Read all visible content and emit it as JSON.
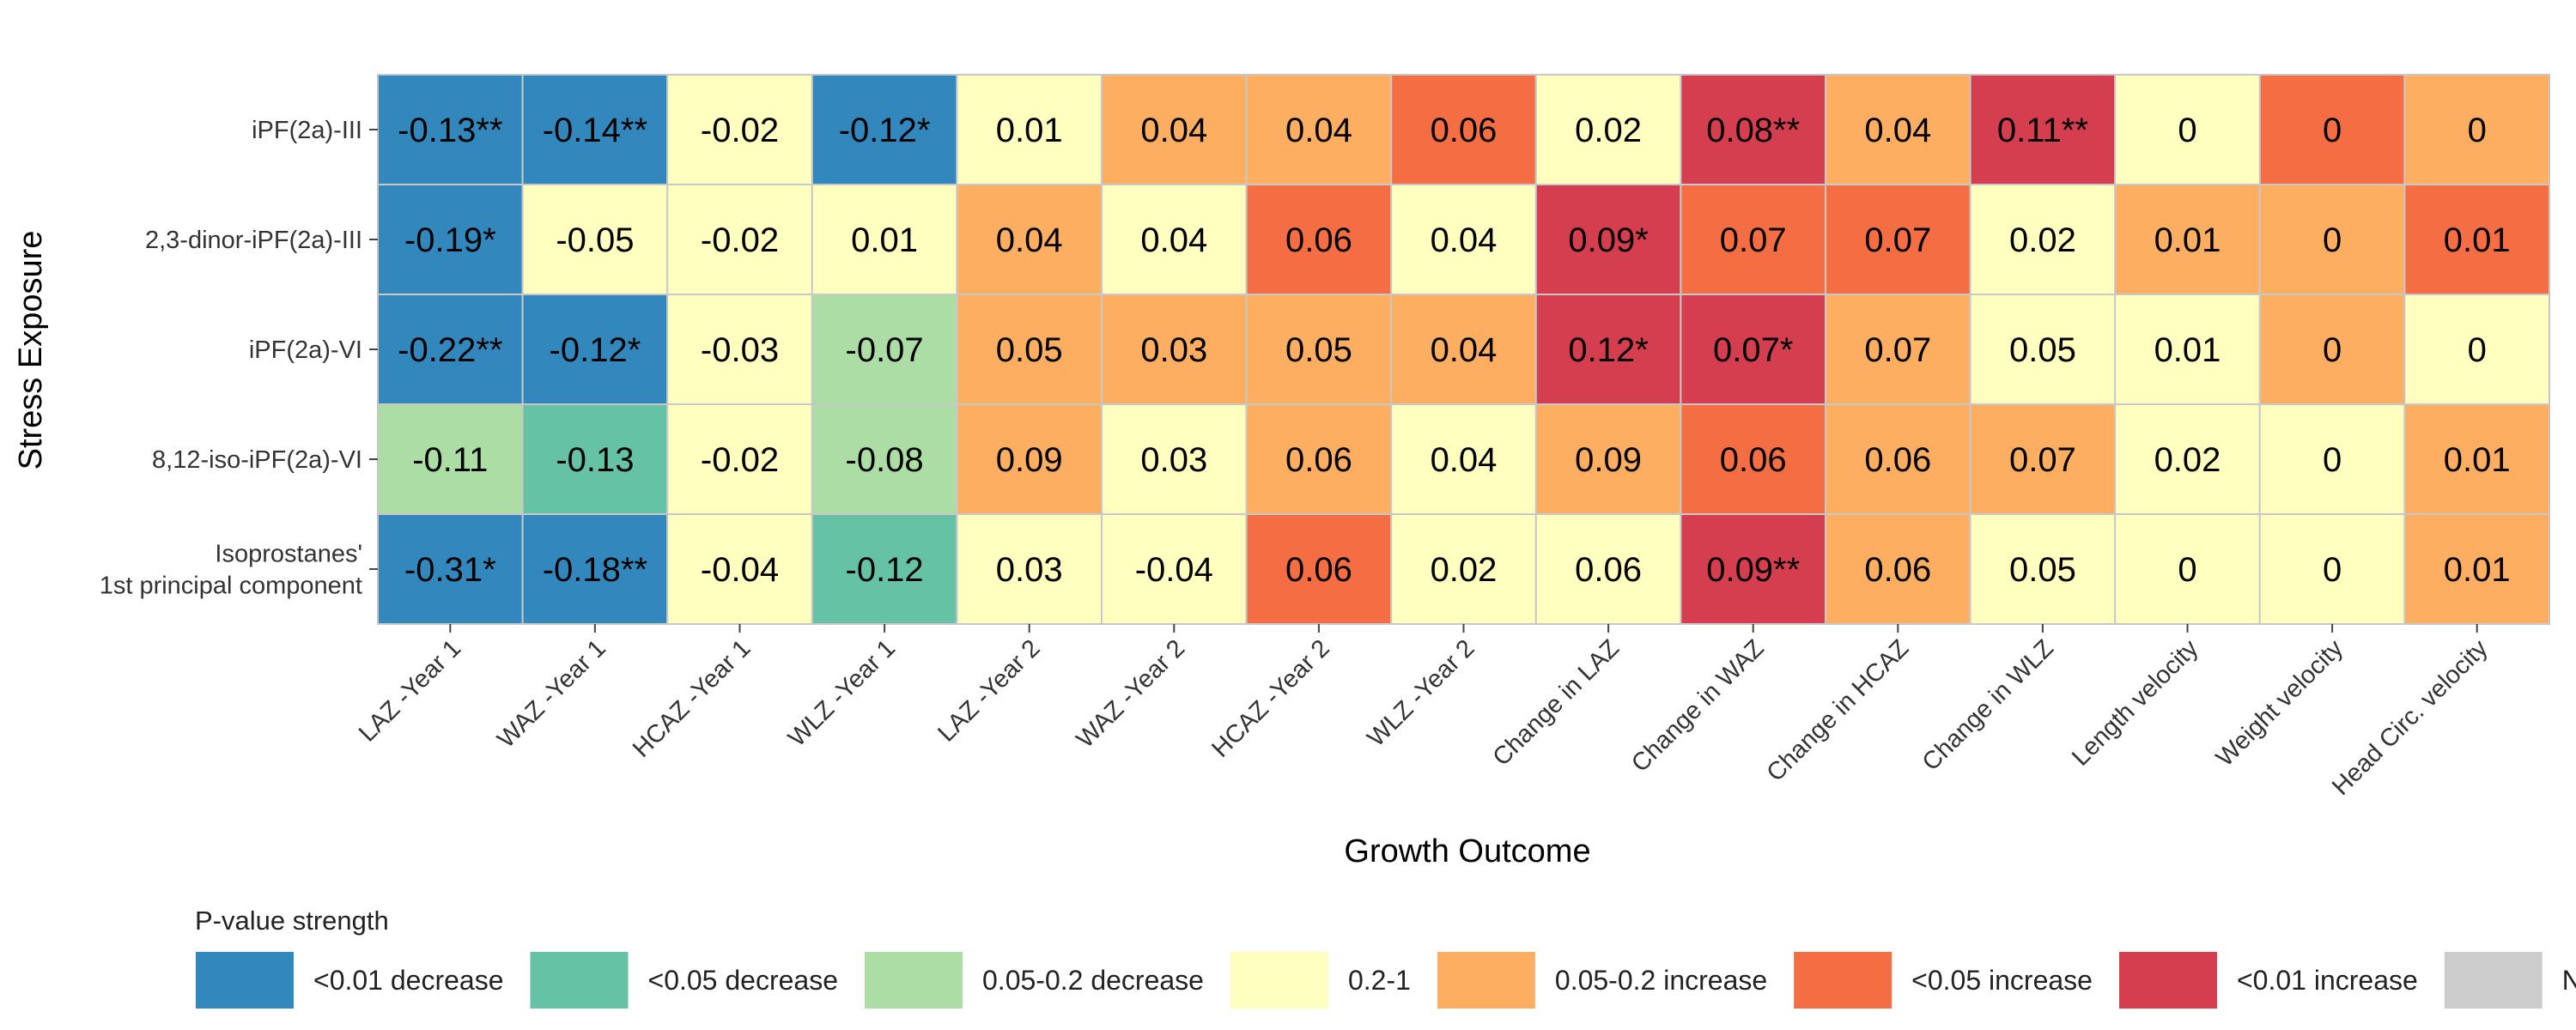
{
  "chart_data": {
    "type": "heatmap",
    "title": "",
    "xlabel": "Growth Outcome",
    "ylabel": "Stress Exposure",
    "x_categories": [
      "LAZ -Year 1",
      "WAZ -Year 1",
      "HCAZ -Year 1",
      "WLZ -Year 1",
      "LAZ -Year 2",
      "WAZ -Year 2",
      "HCAZ -Year 2",
      "WLZ -Year 2",
      "Change in LAZ",
      "Change in WAZ",
      "Change in HCAZ",
      "Change in WLZ",
      "Length velocity",
      "Weight velocity",
      "Head Circ. velocity"
    ],
    "y_categories": [
      [
        "iPF(2a)-III"
      ],
      [
        "2,3-dinor-iPF(2a)-III"
      ],
      [
        "iPF(2a)-VI"
      ],
      [
        "8,12-iso-iPF(2a)-VI"
      ],
      [
        "Isoprostanes'",
        "1st principal component"
      ]
    ],
    "cells": [
      [
        {
          "label": "-0.13**",
          "category": 0
        },
        {
          "label": "-0.14**",
          "category": 0
        },
        {
          "label": "-0.02",
          "category": 3
        },
        {
          "label": "-0.12*",
          "category": 0
        },
        {
          "label": "0.01",
          "category": 3
        },
        {
          "label": "0.04",
          "category": 4
        },
        {
          "label": "0.04",
          "category": 4
        },
        {
          "label": "0.06",
          "category": 5
        },
        {
          "label": "0.02",
          "category": 3
        },
        {
          "label": "0.08**",
          "category": 6
        },
        {
          "label": "0.04",
          "category": 4
        },
        {
          "label": "0.11**",
          "category": 6
        },
        {
          "label": "0",
          "category": 3
        },
        {
          "label": "0",
          "category": 5
        },
        {
          "label": "0",
          "category": 4
        }
      ],
      [
        {
          "label": "-0.19*",
          "category": 0
        },
        {
          "label": "-0.05",
          "category": 3
        },
        {
          "label": "-0.02",
          "category": 3
        },
        {
          "label": "0.01",
          "category": 3
        },
        {
          "label": "0.04",
          "category": 4
        },
        {
          "label": "0.04",
          "category": 3
        },
        {
          "label": "0.06",
          "category": 5
        },
        {
          "label": "0.04",
          "category": 3
        },
        {
          "label": "0.09*",
          "category": 6
        },
        {
          "label": "0.07",
          "category": 5
        },
        {
          "label": "0.07",
          "category": 5
        },
        {
          "label": "0.02",
          "category": 3
        },
        {
          "label": "0.01",
          "category": 4
        },
        {
          "label": "0",
          "category": 4
        },
        {
          "label": "0.01",
          "category": 5
        }
      ],
      [
        {
          "label": "-0.22**",
          "category": 0
        },
        {
          "label": "-0.12*",
          "category": 0
        },
        {
          "label": "-0.03",
          "category": 3
        },
        {
          "label": "-0.07",
          "category": 2
        },
        {
          "label": "0.05",
          "category": 4
        },
        {
          "label": "0.03",
          "category": 4
        },
        {
          "label": "0.05",
          "category": 4
        },
        {
          "label": "0.04",
          "category": 4
        },
        {
          "label": "0.12*",
          "category": 6
        },
        {
          "label": "0.07*",
          "category": 6
        },
        {
          "label": "0.07",
          "category": 4
        },
        {
          "label": "0.05",
          "category": 3
        },
        {
          "label": "0.01",
          "category": 3
        },
        {
          "label": "0",
          "category": 4
        },
        {
          "label": "0",
          "category": 3
        }
      ],
      [
        {
          "label": "-0.11",
          "category": 2
        },
        {
          "label": "-0.13",
          "category": 1
        },
        {
          "label": "-0.02",
          "category": 3
        },
        {
          "label": "-0.08",
          "category": 2
        },
        {
          "label": "0.09",
          "category": 4
        },
        {
          "label": "0.03",
          "category": 3
        },
        {
          "label": "0.06",
          "category": 4
        },
        {
          "label": "0.04",
          "category": 3
        },
        {
          "label": "0.09",
          "category": 4
        },
        {
          "label": "0.06",
          "category": 5
        },
        {
          "label": "0.06",
          "category": 4
        },
        {
          "label": "0.07",
          "category": 4
        },
        {
          "label": "0.02",
          "category": 3
        },
        {
          "label": "0",
          "category": 3
        },
        {
          "label": "0.01",
          "category": 4
        }
      ],
      [
        {
          "label": "-0.31*",
          "category": 0
        },
        {
          "label": "-0.18**",
          "category": 0
        },
        {
          "label": "-0.04",
          "category": 3
        },
        {
          "label": "-0.12",
          "category": 1
        },
        {
          "label": "0.03",
          "category": 3
        },
        {
          "label": "-0.04",
          "category": 3
        },
        {
          "label": "0.06",
          "category": 5
        },
        {
          "label": "0.02",
          "category": 3
        },
        {
          "label": "0.06",
          "category": 3
        },
        {
          "label": "0.09**",
          "category": 6
        },
        {
          "label": "0.06",
          "category": 4
        },
        {
          "label": "0.05",
          "category": 3
        },
        {
          "label": "0",
          "category": 3
        },
        {
          "label": "0",
          "category": 3
        },
        {
          "label": "0.01",
          "category": 4
        }
      ]
    ],
    "legend": {
      "title": "P-value strength",
      "placement": "bottom",
      "items": [
        {
          "label": "<0.01 decrease",
          "color": "#3288bd"
        },
        {
          "label": "<0.05 decrease",
          "color": "#66c2a5"
        },
        {
          "label": "0.05-0.2 decrease",
          "color": "#abdda4"
        },
        {
          "label": "0.2-1",
          "color": "#ffffbf"
        },
        {
          "label": "0.05-0.2 increase",
          "color": "#fdae61"
        },
        {
          "label": "<0.05 increase",
          "color": "#f46d43"
        },
        {
          "label": "<0.01 increase",
          "color": "#d53e4f"
        },
        {
          "label": "N",
          "color": "#cccccc"
        }
      ]
    },
    "cell_border_color": "#c8c8c8"
  }
}
